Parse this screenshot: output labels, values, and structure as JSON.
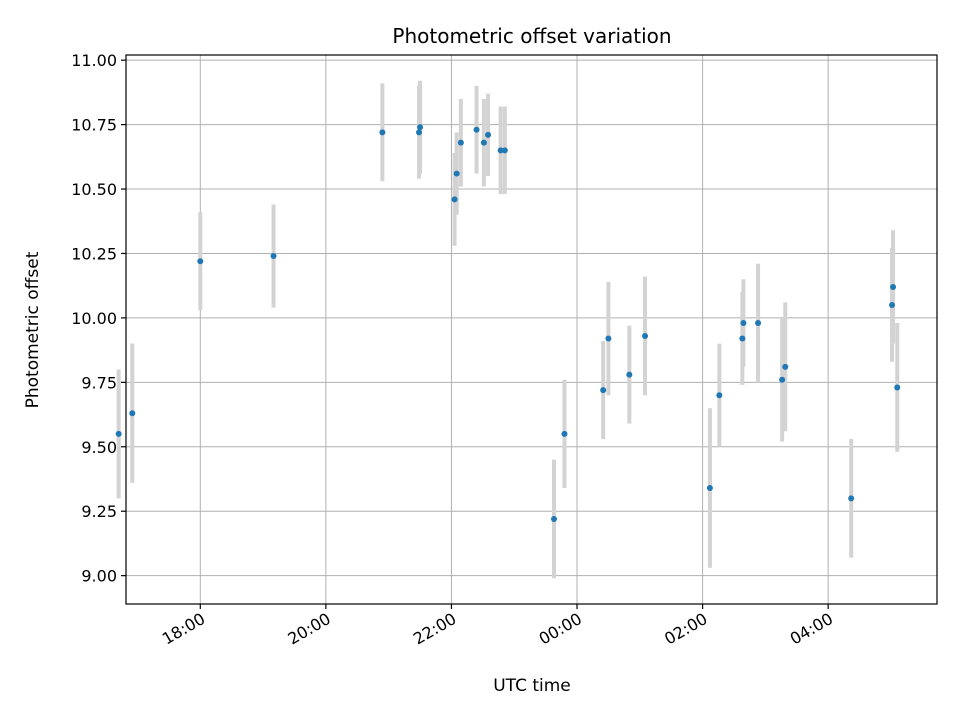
{
  "chart_data": {
    "type": "scatter",
    "title": "Photometric offset variation",
    "xlabel": "UTC time",
    "ylabel": "Photometric offset",
    "x_axis_kind": "time",
    "xlim": [
      "16:49",
      "05:44"
    ],
    "ylim": [
      8.89,
      11.02
    ],
    "y_ticks": [
      9.0,
      9.25,
      9.5,
      9.75,
      10.0,
      10.25,
      10.5,
      10.75,
      11.0
    ],
    "y_tick_labels": [
      "9.00",
      "9.25",
      "9.50",
      "9.75",
      "10.00",
      "10.25",
      "10.50",
      "10.75",
      "11.00"
    ],
    "x_ticks": [
      "18:00",
      "20:00",
      "22:00",
      "00:00",
      "02:00",
      "04:00"
    ],
    "grid": true,
    "marker_color": "#1f77b4",
    "errorbar_color": "#d3d3d3",
    "points": [
      {
        "t": "16:42",
        "y": 9.55,
        "err": 0.25
      },
      {
        "t": "16:55",
        "y": 9.63,
        "err": 0.27
      },
      {
        "t": "18:00",
        "y": 10.22,
        "err": 0.19
      },
      {
        "t": "19:10",
        "y": 10.24,
        "err": 0.2
      },
      {
        "t": "20:54",
        "y": 10.72,
        "err": 0.19
      },
      {
        "t": "21:29",
        "y": 10.72,
        "err": 0.18
      },
      {
        "t": "21:30",
        "y": 10.74,
        "err": 0.18
      },
      {
        "t": "22:03",
        "y": 10.46,
        "err": 0.18
      },
      {
        "t": "22:05",
        "y": 10.56,
        "err": 0.16
      },
      {
        "t": "22:09",
        "y": 10.68,
        "err": 0.17
      },
      {
        "t": "22:24",
        "y": 10.73,
        "err": 0.17
      },
      {
        "t": "22:31",
        "y": 10.68,
        "err": 0.17
      },
      {
        "t": "22:35",
        "y": 10.71,
        "err": 0.16
      },
      {
        "t": "22:47",
        "y": 10.65,
        "err": 0.17
      },
      {
        "t": "22:51",
        "y": 10.65,
        "err": 0.17
      },
      {
        "t": "23:38",
        "y": 9.22,
        "err": 0.23
      },
      {
        "t": "23:48",
        "y": 9.55,
        "err": 0.21
      },
      {
        "t": "00:25",
        "y": 9.72,
        "err": 0.19
      },
      {
        "t": "00:30",
        "y": 9.92,
        "err": 0.22
      },
      {
        "t": "00:50",
        "y": 9.78,
        "err": 0.19
      },
      {
        "t": "01:05",
        "y": 9.93,
        "err": 0.23
      },
      {
        "t": "02:07",
        "y": 9.34,
        "err": 0.31
      },
      {
        "t": "02:16",
        "y": 9.7,
        "err": 0.2
      },
      {
        "t": "02:38",
        "y": 9.92,
        "err": 0.18
      },
      {
        "t": "02:39",
        "y": 9.98,
        "err": 0.17
      },
      {
        "t": "02:53",
        "y": 9.98,
        "err": 0.23
      },
      {
        "t": "03:16",
        "y": 9.76,
        "err": 0.24
      },
      {
        "t": "03:19",
        "y": 9.81,
        "err": 0.25
      },
      {
        "t": "04:22",
        "y": 9.3,
        "err": 0.23
      },
      {
        "t": "05:01",
        "y": 10.05,
        "err": 0.22
      },
      {
        "t": "05:02",
        "y": 10.12,
        "err": 0.22
      },
      {
        "t": "05:06",
        "y": 9.73,
        "err": 0.25
      }
    ]
  }
}
